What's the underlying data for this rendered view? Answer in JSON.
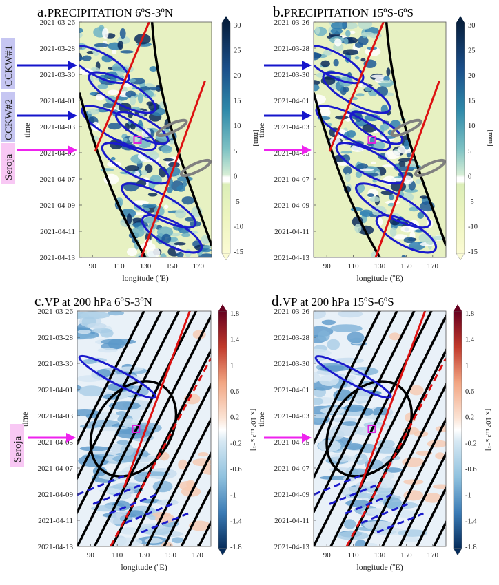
{
  "chart_data": [
    {
      "type": "heatmap",
      "panel_letter": "a.",
      "title": "PRECIPITATION 6ºS-3ºN",
      "xlabel": "longitude (ºE)",
      "ylabel": "time",
      "xlim": [
        80,
        180
      ],
      "x_ticks": [
        "90",
        "110",
        "130",
        "150",
        "170"
      ],
      "y_ticks": [
        "2021-03-26",
        "2021-03-28",
        "2021-03-30",
        "2021-04-01",
        "2021-04-03",
        "2021-04-05",
        "2021-04-07",
        "2021-04-09",
        "2021-04-11",
        "2021-04-13"
      ],
      "colorbar": {
        "unit": "[mm]",
        "ticks": [
          "30",
          "25",
          "20",
          "15",
          "10",
          "5",
          "0",
          "-5",
          "-10",
          "-15"
        ],
        "range": [
          -15,
          30
        ]
      },
      "annotations": [
        "CCKW#1",
        "CCKW#2",
        "Seroja"
      ],
      "marker": {
        "lon": 124,
        "date": "2021-04-04"
      }
    },
    {
      "type": "heatmap",
      "panel_letter": "b.",
      "title": "PRECIPITATION 15ºS-6ºS",
      "xlabel": "longitude (ºE)",
      "ylabel": "time",
      "xlim": [
        80,
        180
      ],
      "x_ticks": [
        "90",
        "110",
        "130",
        "150",
        "170"
      ],
      "y_ticks": [
        "2021-03-26",
        "2021-03-28",
        "2021-03-30",
        "2021-04-01",
        "2021-04-03",
        "2021-04-05",
        "2021-04-07",
        "2021-04-09",
        "2021-04-11",
        "2021-04-13"
      ],
      "colorbar": {
        "unit": "[mm]",
        "ticks": [
          "30",
          "25",
          "20",
          "15",
          "10",
          "5",
          "0",
          "-5",
          "-10",
          "-15"
        ],
        "range": [
          -15,
          30
        ]
      },
      "marker": {
        "lon": 124,
        "date": "2021-04-04"
      }
    },
    {
      "type": "heatmap",
      "panel_letter": "c.",
      "title": "VP at 200 hPa 6ºS-3ºN",
      "xlabel": "longitude (ºE)",
      "ylabel": "time",
      "xlim": [
        80,
        180
      ],
      "x_ticks": [
        "90",
        "110",
        "130",
        "150",
        "170"
      ],
      "y_ticks": [
        "2021-03-26",
        "2021-03-28",
        "2021-03-30",
        "2021-04-01",
        "2021-04-03",
        "2021-04-05",
        "2021-04-07",
        "2021-04-09",
        "2021-04-11",
        "2021-04-13"
      ],
      "colorbar": {
        "unit": "[x 10⁷ m² s⁻¹]",
        "ticks": [
          "1.8",
          "1.4",
          "1",
          "0.6",
          "0.2",
          "-0.2",
          "-0.6",
          "-1",
          "-1.4",
          "-1.8"
        ],
        "range": [
          -1.8,
          1.8
        ]
      },
      "annotations": [
        "Seroja"
      ],
      "marker": {
        "lon": 124,
        "date": "2021-04-04"
      }
    },
    {
      "type": "heatmap",
      "panel_letter": "d.",
      "title": "VP at 200 hPa 15ºS-6ºS",
      "xlabel": "longitude (ºE)",
      "ylabel": "time",
      "xlim": [
        80,
        180
      ],
      "x_ticks": [
        "90",
        "110",
        "130",
        "150",
        "170"
      ],
      "y_ticks": [
        "2021-03-26",
        "2021-03-28",
        "2021-03-30",
        "2021-04-01",
        "2021-04-03",
        "2021-04-05",
        "2021-04-07",
        "2021-04-09",
        "2021-04-11",
        "2021-04-13"
      ],
      "colorbar": {
        "unit": "[x 10⁷ m² s⁻¹]",
        "ticks": [
          "1.8",
          "1.4",
          "1",
          "0.6",
          "0.2",
          "-0.2",
          "-0.6",
          "-1",
          "-1.4",
          "-1.8"
        ],
        "range": [
          -1.8,
          1.8
        ]
      },
      "marker": {
        "lon": 124,
        "date": "2021-04-04"
      }
    }
  ],
  "colors": {
    "kelvin_contour": "#1a1acc",
    "mjo_positive": "#000000",
    "er_contour": "#dd1111",
    "mrg_contour": "#808080",
    "marker": "#dd22dd",
    "seroja_arrow": "#ee22ee",
    "cckw_arrow": "#1515cc",
    "cckw_box": "#c6c6f2",
    "seroja_box": "#f8c8f4"
  }
}
